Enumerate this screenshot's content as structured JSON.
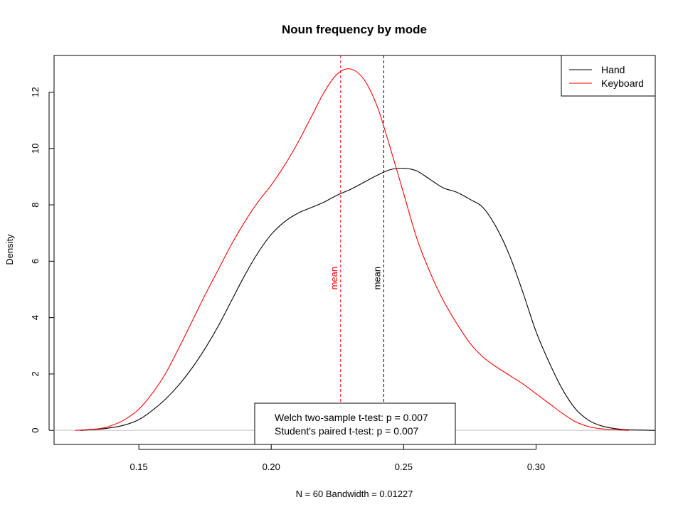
{
  "chart_data": {
    "type": "line",
    "title": "Noun frequency by mode",
    "xlabel": "N = 60   Bandwidth = 0.01227",
    "ylabel": "Density",
    "xlim": [
      0.118,
      0.345
    ],
    "ylim": [
      -0.5,
      13.3
    ],
    "x_ticks": [
      0.15,
      0.2,
      0.25,
      0.3
    ],
    "x_tick_labels": [
      "0.15",
      "0.20",
      "0.25",
      "0.30"
    ],
    "y_ticks": [
      0,
      2,
      4,
      6,
      8,
      10,
      12
    ],
    "y_tick_labels": [
      "0",
      "2",
      "4",
      "6",
      "8",
      "10",
      "12"
    ],
    "grid": false,
    "baseline": 0,
    "legend_position": "top-right",
    "series": [
      {
        "name": "Hand",
        "color": "#000000",
        "points": [
          [
            0.128,
            0.0
          ],
          [
            0.135,
            0.04
          ],
          [
            0.14,
            0.1
          ],
          [
            0.145,
            0.2
          ],
          [
            0.15,
            0.38
          ],
          [
            0.155,
            0.7
          ],
          [
            0.16,
            1.1
          ],
          [
            0.165,
            1.6
          ],
          [
            0.17,
            2.2
          ],
          [
            0.175,
            2.9
          ],
          [
            0.18,
            3.7
          ],
          [
            0.185,
            4.6
          ],
          [
            0.19,
            5.5
          ],
          [
            0.195,
            6.3
          ],
          [
            0.2,
            6.95
          ],
          [
            0.205,
            7.4
          ],
          [
            0.21,
            7.7
          ],
          [
            0.215,
            7.9
          ],
          [
            0.22,
            8.1
          ],
          [
            0.225,
            8.35
          ],
          [
            0.23,
            8.55
          ],
          [
            0.235,
            8.8
          ],
          [
            0.24,
            9.05
          ],
          [
            0.245,
            9.25
          ],
          [
            0.25,
            9.3
          ],
          [
            0.255,
            9.2
          ],
          [
            0.26,
            8.9
          ],
          [
            0.265,
            8.6
          ],
          [
            0.27,
            8.45
          ],
          [
            0.275,
            8.2
          ],
          [
            0.28,
            7.9
          ],
          [
            0.285,
            7.2
          ],
          [
            0.29,
            6.2
          ],
          [
            0.295,
            4.9
          ],
          [
            0.3,
            3.5
          ],
          [
            0.305,
            2.4
          ],
          [
            0.31,
            1.45
          ],
          [
            0.315,
            0.75
          ],
          [
            0.32,
            0.35
          ],
          [
            0.325,
            0.15
          ],
          [
            0.33,
            0.06
          ],
          [
            0.335,
            0.02
          ],
          [
            0.345,
            0.0
          ]
        ]
      },
      {
        "name": "Keyboard",
        "color": "#ff0000",
        "points": [
          [
            0.126,
            0.0
          ],
          [
            0.135,
            0.06
          ],
          [
            0.14,
            0.18
          ],
          [
            0.145,
            0.4
          ],
          [
            0.15,
            0.75
          ],
          [
            0.155,
            1.3
          ],
          [
            0.16,
            2.0
          ],
          [
            0.165,
            2.9
          ],
          [
            0.17,
            3.85
          ],
          [
            0.175,
            4.8
          ],
          [
            0.18,
            5.7
          ],
          [
            0.185,
            6.6
          ],
          [
            0.19,
            7.4
          ],
          [
            0.195,
            8.1
          ],
          [
            0.2,
            8.7
          ],
          [
            0.205,
            9.4
          ],
          [
            0.21,
            10.2
          ],
          [
            0.215,
            11.1
          ],
          [
            0.22,
            12.0
          ],
          [
            0.225,
            12.65
          ],
          [
            0.23,
            12.82
          ],
          [
            0.235,
            12.45
          ],
          [
            0.24,
            11.5
          ],
          [
            0.245,
            10.0
          ],
          [
            0.25,
            8.4
          ],
          [
            0.255,
            6.8
          ],
          [
            0.26,
            5.6
          ],
          [
            0.265,
            4.6
          ],
          [
            0.27,
            3.8
          ],
          [
            0.275,
            3.1
          ],
          [
            0.28,
            2.6
          ],
          [
            0.285,
            2.25
          ],
          [
            0.29,
            1.95
          ],
          [
            0.295,
            1.65
          ],
          [
            0.3,
            1.3
          ],
          [
            0.305,
            0.95
          ],
          [
            0.31,
            0.6
          ],
          [
            0.315,
            0.3
          ],
          [
            0.32,
            0.13
          ],
          [
            0.325,
            0.05
          ],
          [
            0.335,
            0.0
          ]
        ]
      }
    ],
    "mean_lines": [
      {
        "series": "Keyboard",
        "x": 0.2262,
        "label": "mean",
        "color": "#ff0000",
        "label_y": 5.4
      },
      {
        "series": "Hand",
        "x": 0.2425,
        "label": "mean",
        "color": "#000000",
        "label_y": 5.4
      }
    ],
    "annotation_box": {
      "lines": [
        "Welch two-sample t-test:  p =  0.007",
        "Student's paired t-test:  p =  0.007"
      ],
      "position": "bottom-center"
    }
  }
}
